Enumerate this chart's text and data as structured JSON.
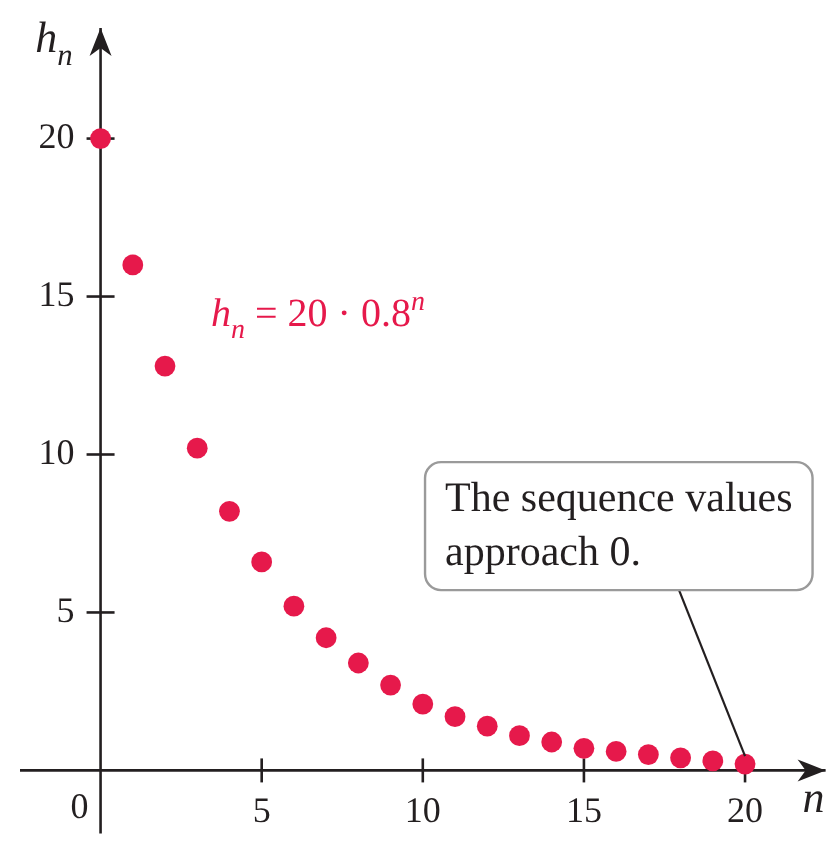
{
  "chart_data": {
    "type": "scatter",
    "xlabel": "n",
    "ylabel": "h$_{n}$",
    "x": [
      0,
      1,
      2,
      3,
      4,
      5,
      6,
      7,
      8,
      9,
      10,
      11,
      12,
      13,
      14,
      15,
      16,
      17,
      18,
      19,
      20
    ],
    "series": [
      {
        "name": "h$_{n}$ = 20 · 0.8$^{n}$",
        "color": "#e6194b",
        "values": [
          20,
          16,
          12.8,
          10.2,
          8.2,
          6.6,
          5.2,
          4.2,
          3.4,
          2.7,
          2.1,
          1.7,
          1.4,
          1.1,
          0.9,
          0.7,
          0.6,
          0.5,
          0.4,
          0.3,
          0.2
        ]
      }
    ],
    "xlim": [
      -2.5,
      22.5
    ],
    "ylim": [
      -2,
      23.5
    ],
    "xticks": [
      0,
      5,
      10,
      15,
      20
    ],
    "yticks": [
      5,
      10,
      15,
      20
    ],
    "marker": "circle",
    "annotations": [
      {
        "text": "The sequence values approach 0.",
        "x": 20,
        "y": 0.2
      }
    ]
  }
}
